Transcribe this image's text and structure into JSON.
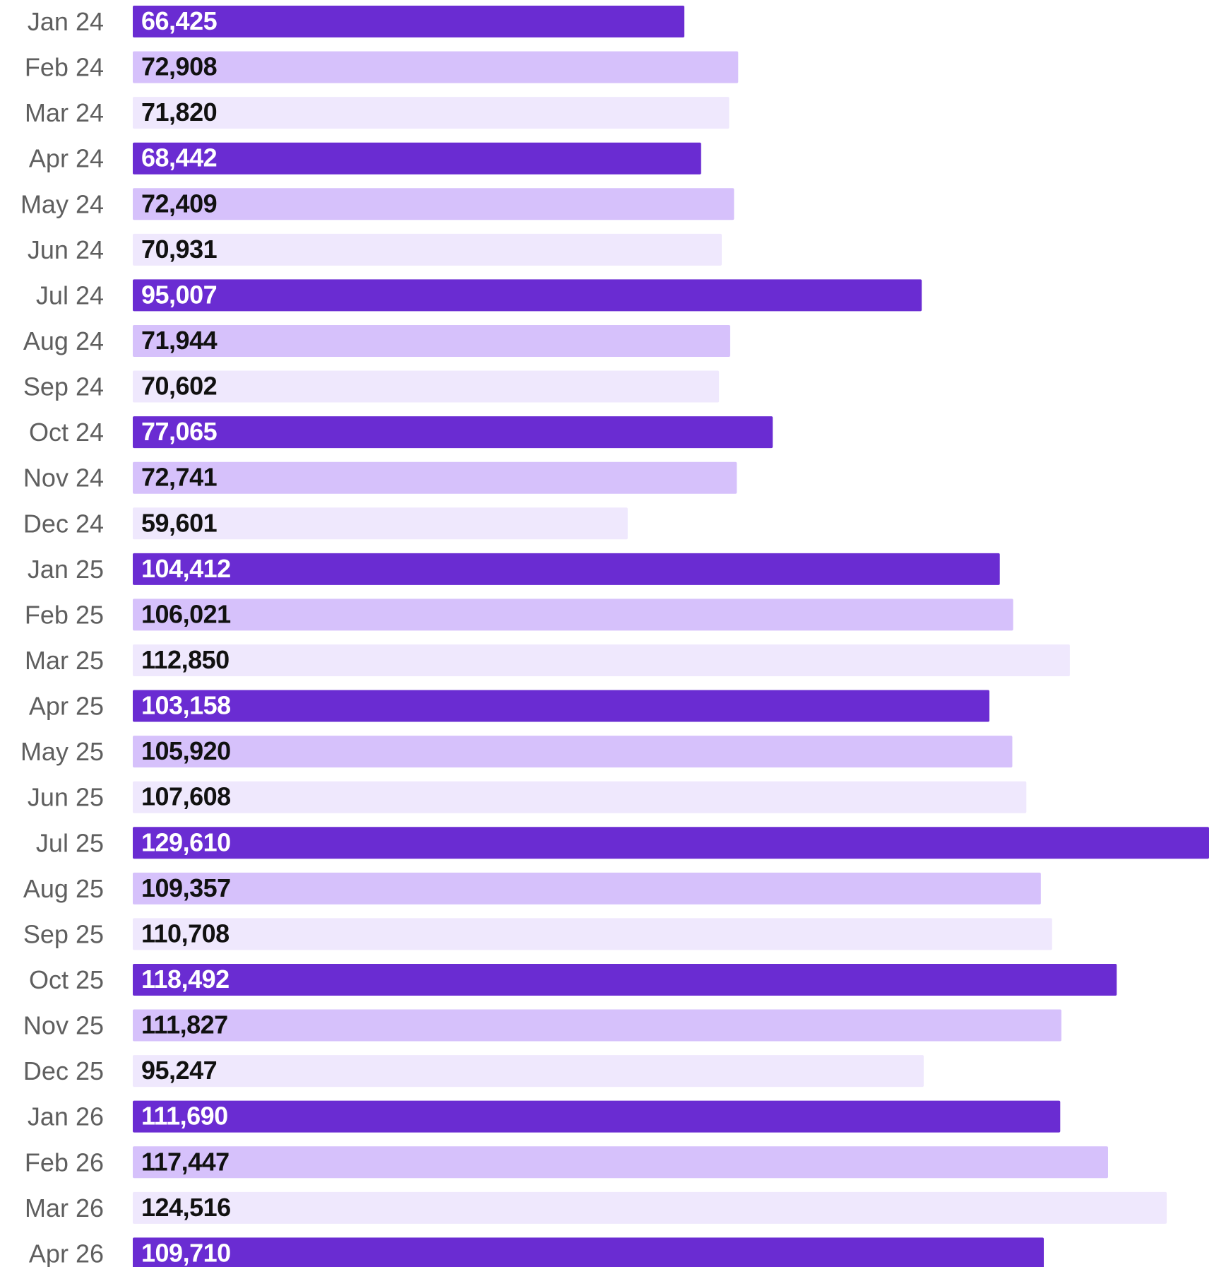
{
  "chart_data": {
    "type": "bar",
    "orientation": "horizontal",
    "title": "",
    "xlabel": "",
    "ylabel": "",
    "grid": false,
    "legend": "none",
    "xlim": [
      0,
      129610
    ],
    "categories": [
      "Jan 24",
      "Feb 24",
      "Mar 24",
      "Apr 24",
      "May 24",
      "Jun 24",
      "Jul 24",
      "Aug 24",
      "Sep 24",
      "Oct 24",
      "Nov 24",
      "Dec 24",
      "Jan 25",
      "Feb 25",
      "Mar 25",
      "Apr 25",
      "May 25",
      "Jun 25",
      "Jul 25",
      "Aug 25",
      "Sep 25",
      "Oct 25",
      "Nov 25",
      "Dec 25",
      "Jan 26",
      "Feb 26",
      "Mar 26",
      "Apr 26"
    ],
    "values": [
      66425,
      72908,
      71820,
      68442,
      72409,
      70931,
      95007,
      71944,
      70602,
      77065,
      72741,
      59601,
      104412,
      106021,
      112850,
      103158,
      105920,
      107608,
      129610,
      109357,
      110708,
      118492,
      111827,
      95247,
      111690,
      117447,
      124516,
      109710
    ],
    "value_labels": [
      "66,425",
      "72,908",
      "71,820",
      "68,442",
      "72,409",
      "70,931",
      "95,007",
      "71,944",
      "70,602",
      "77,065",
      "72,741",
      "59,601",
      "104,412",
      "106,021",
      "112,850",
      "103,158",
      "105,920",
      "107,608",
      "129,610",
      "109,357",
      "110,708",
      "118,492",
      "111,827",
      "95,247",
      "111,690",
      "117,447",
      "124,516",
      "109,710"
    ],
    "colors": {
      "dark": "#6a2cd2",
      "medium": "#d6c1fb",
      "light": "#efe8fd",
      "label_on_dark": "#ffffff",
      "label_on_light": "#111111",
      "category_text": "#5f5f5f"
    },
    "color_cycle": [
      "dark",
      "medium",
      "light"
    ]
  }
}
